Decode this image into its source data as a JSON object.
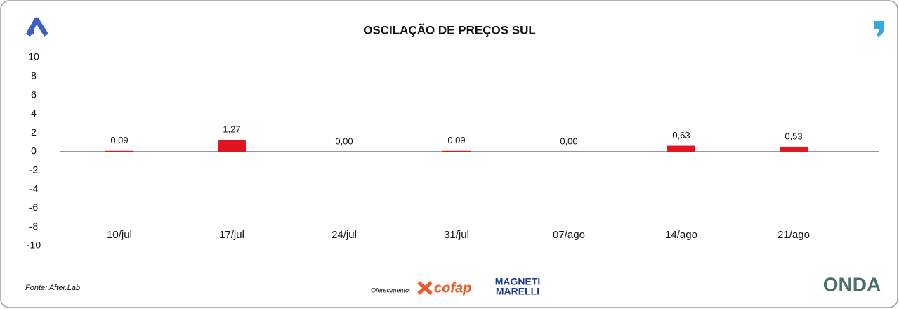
{
  "chart_data": {
    "type": "bar",
    "title": "OSCILAÇÃO DE PREÇOS SUL",
    "categories": [
      "10/jul",
      "17/jul",
      "24/jul",
      "31/jul",
      "07/ago",
      "14/ago",
      "21/ago"
    ],
    "values": [
      0.09,
      1.27,
      0.0,
      0.09,
      0.0,
      0.63,
      0.53
    ],
    "value_labels": [
      "0,09",
      "1,27",
      "0,00",
      "0,09",
      "0,00",
      "0,63",
      "0,53"
    ],
    "color": "#e3141f",
    "ylim": [
      -10,
      10
    ],
    "yticks": [
      10,
      8,
      6,
      4,
      2,
      0,
      -2,
      -4,
      -6,
      -8,
      -10
    ],
    "grid": false,
    "source": "Fonte: After.Lab",
    "sponsor_label": "Oferecimento:",
    "logos": [
      "cofap",
      "MAGNETI",
      "MARELLI",
      "ONDA"
    ]
  }
}
